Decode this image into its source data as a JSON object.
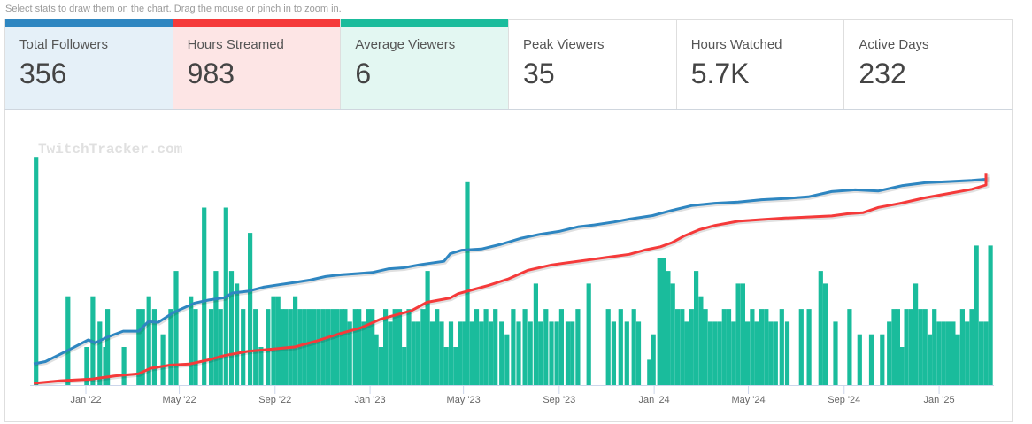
{
  "hint": "Select stats to draw them on the chart. Drag the mouse or pinch in to zoom in.",
  "stats": [
    {
      "label": "Total Followers",
      "value": "356",
      "selected": true,
      "color": "#2e86c1",
      "bg": "#e5f0f8"
    },
    {
      "label": "Hours Streamed",
      "value": "983",
      "selected": true,
      "color": "#f53a3a",
      "bg": "#fde5e5"
    },
    {
      "label": "Average Viewers",
      "value": "6",
      "selected": true,
      "color": "#1abc9c",
      "bg": "#e3f7f2"
    },
    {
      "label": "Peak Viewers",
      "value": "35",
      "selected": false
    },
    {
      "label": "Hours Watched",
      "value": "5.7K",
      "selected": false
    },
    {
      "label": "Active Days",
      "value": "232",
      "selected": false
    }
  ],
  "chart_data": {
    "type": "bar+line",
    "watermark": "TwitchTracker.com",
    "x_start_date": "2021-10-01",
    "x_unit": "days since 2021-10-01",
    "xlim": [
      0,
      1275
    ],
    "x_ticks": [
      {
        "label": "Jan '22",
        "day": 92
      },
      {
        "label": "May '22",
        "day": 212
      },
      {
        "label": "Sep '22",
        "day": 335
      },
      {
        "label": "Jan '23",
        "day": 457
      },
      {
        "label": "May '23",
        "day": 577
      },
      {
        "label": "Sep '23",
        "day": 700
      },
      {
        "label": "Jan '24",
        "day": 822
      },
      {
        "label": "May '24",
        "day": 943
      },
      {
        "label": "Sep '24",
        "day": 1066
      },
      {
        "label": "Jan '25",
        "day": 1188
      }
    ],
    "legend": "none",
    "grid": false,
    "series": [
      {
        "name": "Average Viewers",
        "type": "bar",
        "color": "#1abc9c",
        "ylim": [
          0,
          18.5
        ],
        "points": [
          [
            25,
            18
          ],
          [
            66,
            7
          ],
          [
            90,
            3
          ],
          [
            98,
            7
          ],
          [
            107,
            5
          ],
          [
            114,
            3
          ],
          [
            117,
            6
          ],
          [
            138,
            3
          ],
          [
            157,
            6
          ],
          [
            162,
            6
          ],
          [
            170,
            7
          ],
          [
            177,
            6
          ],
          [
            188,
            4
          ],
          [
            198,
            6
          ],
          [
            205,
            9
          ],
          [
            224,
            7
          ],
          [
            230,
            6
          ],
          [
            241,
            14
          ],
          [
            250,
            6
          ],
          [
            256,
            9
          ],
          [
            262,
            6
          ],
          [
            269,
            14
          ],
          [
            276,
            9
          ],
          [
            283,
            8
          ],
          [
            291,
            6
          ],
          [
            300,
            12
          ],
          [
            307,
            6
          ],
          [
            314,
            3
          ],
          [
            323,
            6
          ],
          [
            330,
            7
          ],
          [
            336,
            7
          ],
          [
            341,
            6
          ],
          [
            346,
            6
          ],
          [
            352,
            6
          ],
          [
            358,
            7
          ],
          [
            364,
            6
          ],
          [
            370,
            6
          ],
          [
            376,
            6
          ],
          [
            382,
            6
          ],
          [
            388,
            6
          ],
          [
            394,
            6
          ],
          [
            400,
            6
          ],
          [
            406,
            6
          ],
          [
            412,
            6
          ],
          [
            418,
            6
          ],
          [
            422,
            6
          ],
          [
            428,
            5
          ],
          [
            435,
            6
          ],
          [
            440,
            6
          ],
          [
            446,
            5
          ],
          [
            452,
            6
          ],
          [
            457,
            6
          ],
          [
            462,
            4
          ],
          [
            468,
            3
          ],
          [
            474,
            6
          ],
          [
            480,
            5
          ],
          [
            486,
            6
          ],
          [
            492,
            6
          ],
          [
            498,
            3
          ],
          [
            504,
            6
          ],
          [
            510,
            5
          ],
          [
            516,
            5
          ],
          [
            522,
            6
          ],
          [
            528,
            9
          ],
          [
            534,
            5
          ],
          [
            540,
            6
          ],
          [
            546,
            5
          ],
          [
            552,
            3
          ],
          [
            558,
            5
          ],
          [
            564,
            3
          ],
          [
            570,
            5
          ],
          [
            576,
            5
          ],
          [
            579,
            16
          ],
          [
            585,
            5
          ],
          [
            591,
            6
          ],
          [
            597,
            5
          ],
          [
            603,
            6
          ],
          [
            609,
            5
          ],
          [
            615,
            6
          ],
          [
            623,
            5
          ],
          [
            630,
            4
          ],
          [
            638,
            6
          ],
          [
            645,
            5
          ],
          [
            653,
            6
          ],
          [
            660,
            5
          ],
          [
            667,
            8
          ],
          [
            673,
            5
          ],
          [
            680,
            6
          ],
          [
            687,
            5
          ],
          [
            694,
            5
          ],
          [
            700,
            6
          ],
          [
            708,
            5
          ],
          [
            714,
            5
          ],
          [
            721,
            6
          ],
          [
            735,
            8
          ],
          [
            760,
            6
          ],
          [
            767,
            5
          ],
          [
            776,
            6
          ],
          [
            784,
            5
          ],
          [
            793,
            6
          ],
          [
            799,
            5
          ],
          [
            813,
            2
          ],
          [
            818,
            4
          ],
          [
            826,
            10
          ],
          [
            831,
            10
          ],
          [
            837,
            9
          ],
          [
            843,
            8
          ],
          [
            849,
            6
          ],
          [
            855,
            6
          ],
          [
            861,
            5
          ],
          [
            867,
            6
          ],
          [
            873,
            9
          ],
          [
            879,
            7
          ],
          [
            885,
            6
          ],
          [
            891,
            5
          ],
          [
            897,
            5
          ],
          [
            903,
            5
          ],
          [
            909,
            6
          ],
          [
            915,
            6
          ],
          [
            921,
            5
          ],
          [
            927,
            8
          ],
          [
            933,
            8
          ],
          [
            939,
            5
          ],
          [
            945,
            6
          ],
          [
            951,
            5
          ],
          [
            957,
            6
          ],
          [
            963,
            6
          ],
          [
            969,
            5
          ],
          [
            975,
            5
          ],
          [
            983,
            6
          ],
          [
            990,
            5
          ],
          [
            1008,
            6
          ],
          [
            1018,
            6
          ],
          [
            1033,
            9
          ],
          [
            1039,
            8
          ],
          [
            1052,
            5
          ],
          [
            1070,
            6
          ],
          [
            1083,
            4
          ],
          [
            1098,
            4
          ],
          [
            1112,
            4
          ],
          [
            1121,
            5
          ],
          [
            1127,
            6
          ],
          [
            1132,
            6
          ],
          [
            1137,
            3
          ],
          [
            1143,
            6
          ],
          [
            1149,
            6
          ],
          [
            1155,
            8
          ],
          [
            1161,
            6
          ],
          [
            1167,
            6
          ],
          [
            1173,
            4
          ],
          [
            1179,
            6
          ],
          [
            1185,
            5
          ],
          [
            1191,
            5
          ],
          [
            1197,
            5
          ],
          [
            1203,
            5
          ],
          [
            1209,
            4
          ],
          [
            1215,
            6
          ],
          [
            1221,
            5
          ],
          [
            1227,
            6
          ],
          [
            1233,
            11
          ],
          [
            1239,
            5
          ],
          [
            1245,
            5
          ],
          [
            1251,
            11
          ],
          [
            1257,
            6
          ],
          [
            1263,
            6
          ],
          [
            1266,
            5
          ],
          [
            1272,
            6
          ],
          [
            1278,
            6
          ],
          [
            1283,
            5
          ]
        ]
      },
      {
        "name": "Total Followers",
        "type": "line",
        "color": "#2e86c1",
        "ylim": [
          0,
          400
        ],
        "points": [
          [
            25,
            36
          ],
          [
            40,
            40
          ],
          [
            70,
            60
          ],
          [
            95,
            77
          ],
          [
            104,
            72
          ],
          [
            120,
            82
          ],
          [
            140,
            92
          ],
          [
            160,
            92
          ],
          [
            172,
            108
          ],
          [
            185,
            107
          ],
          [
            205,
            124
          ],
          [
            232,
            140
          ],
          [
            250,
            145
          ],
          [
            270,
            149
          ],
          [
            280,
            157
          ],
          [
            300,
            160
          ],
          [
            320,
            167
          ],
          [
            340,
            171
          ],
          [
            360,
            175
          ],
          [
            380,
            179
          ],
          [
            400,
            185
          ],
          [
            420,
            188
          ],
          [
            440,
            190
          ],
          [
            460,
            192
          ],
          [
            480,
            198
          ],
          [
            500,
            200
          ],
          [
            520,
            205
          ],
          [
            552,
            211
          ],
          [
            560,
            224
          ],
          [
            575,
            230
          ],
          [
            600,
            232
          ],
          [
            625,
            240
          ],
          [
            650,
            250
          ],
          [
            675,
            257
          ],
          [
            700,
            262
          ],
          [
            725,
            270
          ],
          [
            745,
            273
          ],
          [
            770,
            278
          ],
          [
            790,
            283
          ],
          [
            820,
            289
          ],
          [
            845,
            298
          ],
          [
            870,
            306
          ],
          [
            900,
            310
          ],
          [
            930,
            312
          ],
          [
            960,
            316
          ],
          [
            990,
            318
          ],
          [
            1020,
            321
          ],
          [
            1050,
            330
          ],
          [
            1080,
            333
          ],
          [
            1110,
            331
          ],
          [
            1140,
            340
          ],
          [
            1170,
            345
          ],
          [
            1200,
            347
          ],
          [
            1230,
            349
          ],
          [
            1250,
            351
          ],
          [
            1265,
            352
          ],
          [
            1283,
            356
          ]
        ]
      },
      {
        "name": "Hours Streamed",
        "type": "line",
        "color": "#f53a3a",
        "ylim": [
          0,
          1100
        ],
        "points": [
          [
            25,
            0
          ],
          [
            60,
            12
          ],
          [
            100,
            20
          ],
          [
            130,
            35
          ],
          [
            160,
            45
          ],
          [
            175,
            70
          ],
          [
            200,
            85
          ],
          [
            225,
            90
          ],
          [
            250,
            110
          ],
          [
            270,
            130
          ],
          [
            300,
            150
          ],
          [
            330,
            160
          ],
          [
            360,
            170
          ],
          [
            390,
            200
          ],
          [
            420,
            235
          ],
          [
            445,
            260
          ],
          [
            470,
            300
          ],
          [
            485,
            315
          ],
          [
            510,
            340
          ],
          [
            530,
            380
          ],
          [
            560,
            400
          ],
          [
            570,
            420
          ],
          [
            590,
            440
          ],
          [
            610,
            460
          ],
          [
            635,
            490
          ],
          [
            660,
            530
          ],
          [
            690,
            555
          ],
          [
            720,
            570
          ],
          [
            740,
            580
          ],
          [
            760,
            590
          ],
          [
            790,
            605
          ],
          [
            810,
            625
          ],
          [
            830,
            640
          ],
          [
            845,
            660
          ],
          [
            860,
            690
          ],
          [
            880,
            720
          ],
          [
            900,
            740
          ],
          [
            930,
            760
          ],
          [
            960,
            768
          ],
          [
            990,
            775
          ],
          [
            1020,
            780
          ],
          [
            1050,
            785
          ],
          [
            1070,
            795
          ],
          [
            1090,
            800
          ],
          [
            1110,
            825
          ],
          [
            1140,
            845
          ],
          [
            1170,
            870
          ],
          [
            1200,
            890
          ],
          [
            1230,
            910
          ],
          [
            1260,
            930
          ],
          [
            1275,
            950
          ],
          [
            1283,
            983
          ]
        ]
      }
    ]
  }
}
